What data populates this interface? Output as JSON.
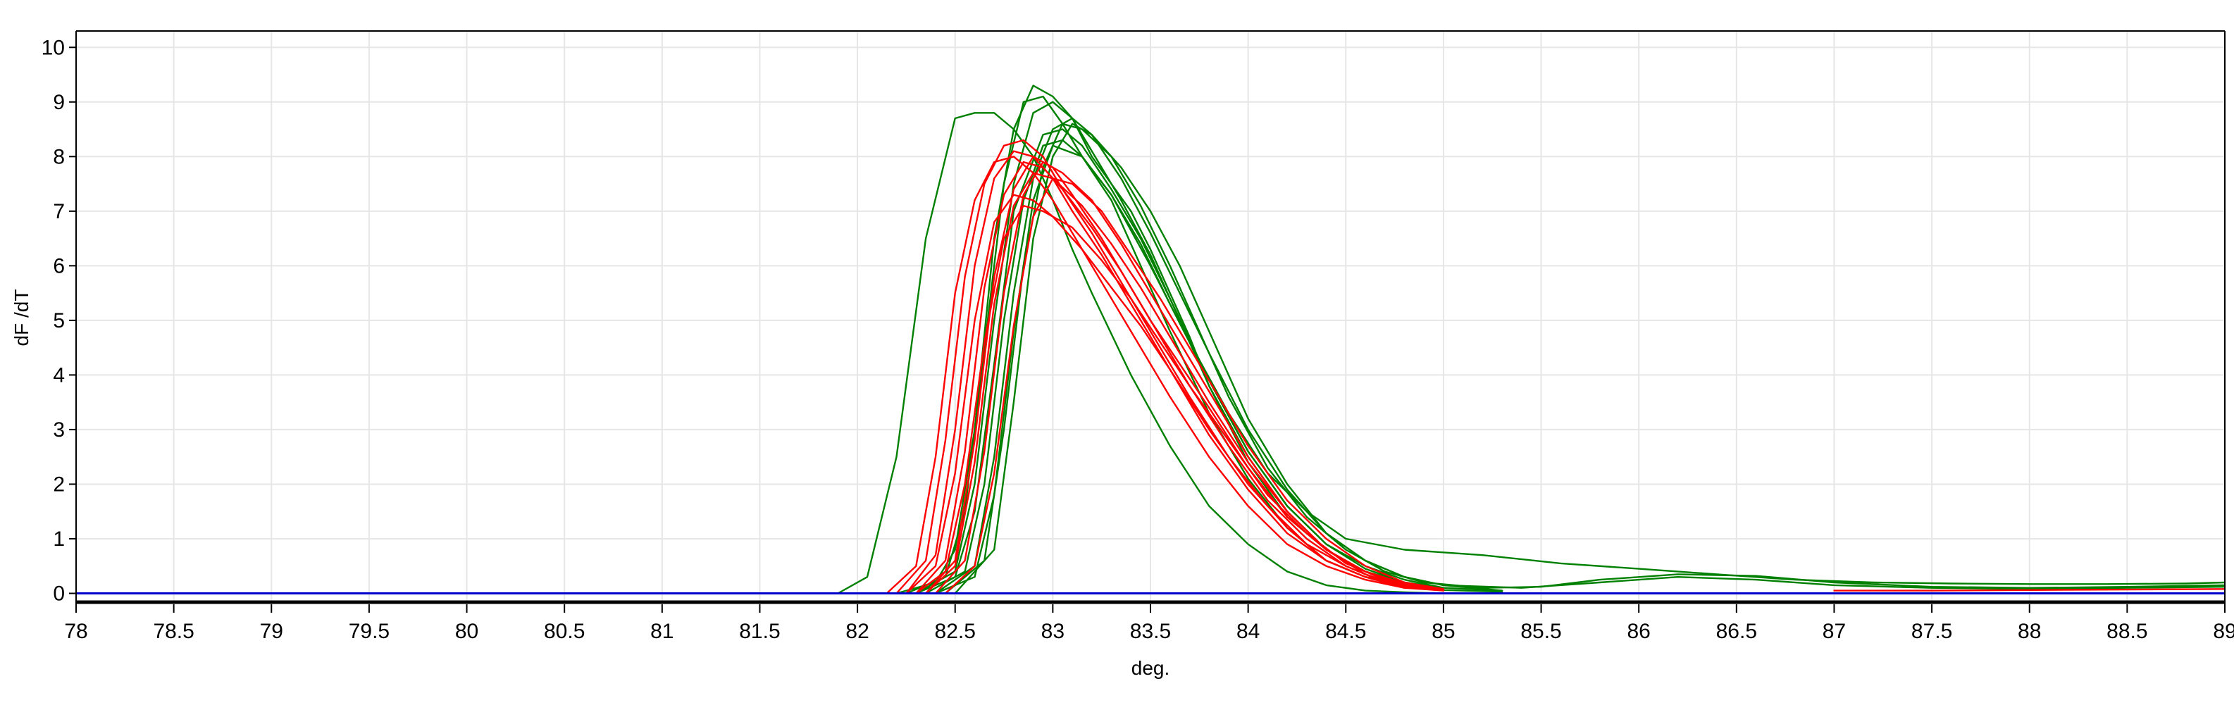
{
  "chart_data": {
    "type": "line",
    "title": "",
    "xlabel": "deg.",
    "ylabel": "dF /dT",
    "xlim": [
      78,
      89
    ],
    "ylim": [
      -0.2,
      10.3
    ],
    "grid": true,
    "legend": "none",
    "x_ticks": [
      "78",
      "78.5",
      "79",
      "79.5",
      "80",
      "80.5",
      "81",
      "81.5",
      "82",
      "82.5",
      "83",
      "83.5",
      "84",
      "84.5",
      "85",
      "85.5",
      "86",
      "86.5",
      "87",
      "87.5",
      "88",
      "88.5",
      "89"
    ],
    "y_ticks": [
      "0",
      "1",
      "2",
      "3",
      "4",
      "5",
      "6",
      "7",
      "8",
      "9",
      "10"
    ],
    "colors": {
      "red_group": "#ff0000",
      "green_group": "#008000",
      "baseline": "#0000cc",
      "grid": "#e6e6e6",
      "axis": "#000000",
      "bottom_rule": "#000000"
    },
    "series": [
      {
        "color": "#008000",
        "x": [
          81.9,
          82.05,
          82.2,
          82.35,
          82.5,
          82.6,
          82.7,
          82.8,
          82.9,
          83.0,
          83.1,
          83.2,
          83.4,
          83.6,
          83.8,
          84.0,
          84.2,
          84.4,
          84.6,
          84.8,
          85.0
        ],
        "y": [
          0,
          0.3,
          2.5,
          6.5,
          8.7,
          8.8,
          8.8,
          8.5,
          8.0,
          7.2,
          6.3,
          5.5,
          4.0,
          2.7,
          1.6,
          0.9,
          0.4,
          0.15,
          0.05,
          0.02,
          0
        ]
      },
      {
        "color": "#008000",
        "x": [
          82.2,
          82.4,
          82.5,
          82.6,
          82.7,
          82.8,
          82.9,
          83.0,
          83.1,
          83.2,
          83.3,
          83.4,
          83.5,
          83.6,
          83.7,
          83.8,
          84.0,
          84.2,
          84.4,
          84.6,
          84.8,
          85.0,
          85.3
        ],
        "y": [
          0,
          0.2,
          0.8,
          3.0,
          6.5,
          8.5,
          9.3,
          9.1,
          8.7,
          8.0,
          7.5,
          7.0,
          6.3,
          5.5,
          4.7,
          3.8,
          2.4,
          1.4,
          0.8,
          0.4,
          0.2,
          0.1,
          0.05
        ]
      },
      {
        "color": "#008000",
        "x": [
          82.25,
          82.45,
          82.55,
          82.65,
          82.75,
          82.85,
          82.95,
          83.05,
          83.15,
          83.3,
          83.45,
          83.6,
          83.8,
          84.0,
          84.2,
          84.4,
          84.6,
          84.8,
          85.0,
          85.3
        ],
        "y": [
          0,
          0.3,
          1.5,
          4.5,
          7.5,
          9.0,
          9.1,
          8.6,
          8.0,
          7.2,
          6.0,
          4.8,
          3.3,
          2.1,
          1.2,
          0.6,
          0.3,
          0.15,
          0.06,
          0.03
        ]
      },
      {
        "color": "#008000",
        "x": [
          82.3,
          82.5,
          82.6,
          82.7,
          82.8,
          82.9,
          83.0,
          83.1,
          83.2,
          83.35,
          83.5,
          83.65,
          83.8,
          84.0,
          84.2,
          84.4,
          84.6,
          84.8,
          85.0
        ],
        "y": [
          0,
          0.4,
          2.0,
          5.0,
          7.5,
          8.8,
          9.0,
          8.7,
          8.1,
          7.2,
          6.2,
          5.0,
          3.8,
          2.5,
          1.5,
          0.8,
          0.4,
          0.2,
          0.1
        ]
      },
      {
        "color": "#008000",
        "x": [
          82.3,
          82.5,
          82.6,
          82.7,
          82.8,
          82.95,
          83.05,
          83.15,
          83.3,
          83.45,
          83.6,
          83.8,
          84.0,
          84.2,
          84.4,
          84.6,
          84.8,
          85.0
        ],
        "y": [
          0,
          0.3,
          1.5,
          4.2,
          7.0,
          8.4,
          8.5,
          8.2,
          7.4,
          6.5,
          5.4,
          3.9,
          2.6,
          1.6,
          0.9,
          0.45,
          0.2,
          0.08
        ]
      },
      {
        "color": "#008000",
        "x": [
          82.35,
          82.55,
          82.65,
          82.75,
          82.85,
          82.95,
          83.05,
          83.15,
          83.3,
          83.45,
          83.6,
          83.8,
          84.0,
          84.2,
          84.4,
          84.6,
          84.8,
          85.0
        ],
        "y": [
          0,
          0.4,
          2.0,
          5.0,
          7.2,
          8.2,
          8.3,
          8.0,
          7.3,
          6.4,
          5.3,
          3.9,
          2.6,
          1.6,
          0.9,
          0.5,
          0.25,
          0.1
        ]
      },
      {
        "color": "#008000",
        "x": [
          82.4,
          82.6,
          82.7,
          82.8,
          82.9,
          83.0,
          83.1,
          83.2,
          83.35,
          83.5,
          83.65,
          83.8,
          84.0,
          84.2,
          84.4,
          84.6,
          84.8,
          85.0,
          85.3
        ],
        "y": [
          0,
          0.5,
          2.5,
          5.5,
          7.6,
          8.5,
          8.7,
          8.4,
          7.6,
          6.6,
          5.5,
          4.4,
          3.0,
          1.9,
          1.1,
          0.6,
          0.3,
          0.15,
          0.05
        ]
      },
      {
        "color": "#008000",
        "x": [
          82.4,
          82.6,
          82.7,
          82.8,
          82.9,
          83.0,
          83.15,
          83.3,
          83.5,
          83.7,
          83.9,
          84.1,
          84.3,
          84.5,
          84.8,
          85.2,
          85.6,
          86.0,
          86.4,
          86.8,
          87.2,
          87.6,
          88.0,
          88.4,
          88.8,
          89.0
        ],
        "y": [
          0,
          0.3,
          1.8,
          4.8,
          7.2,
          8.2,
          8.0,
          7.3,
          6.0,
          4.6,
          3.3,
          2.2,
          1.5,
          1.0,
          0.8,
          0.7,
          0.55,
          0.45,
          0.35,
          0.25,
          0.2,
          0.18,
          0.17,
          0.17,
          0.18,
          0.2
        ]
      },
      {
        "color": "#008000",
        "x": [
          82.45,
          82.65,
          82.75,
          82.85,
          82.95,
          83.05,
          83.15,
          83.3,
          83.45,
          83.6,
          83.75,
          83.9,
          84.1,
          84.3,
          84.5,
          84.7,
          84.9,
          85.2,
          85.5,
          85.8,
          86.2,
          86.6,
          87.0,
          87.5,
          88.0,
          88.5,
          89.0
        ],
        "y": [
          0,
          0.6,
          3.0,
          6.0,
          7.8,
          8.6,
          8.5,
          8.0,
          7.1,
          6.0,
          4.8,
          3.6,
          2.3,
          1.4,
          0.8,
          0.4,
          0.2,
          0.1,
          0.12,
          0.25,
          0.35,
          0.32,
          0.2,
          0.12,
          0.1,
          0.12,
          0.15
        ]
      },
      {
        "color": "#008000",
        "x": [
          82.5,
          82.7,
          82.8,
          82.9,
          83.0,
          83.1,
          83.2,
          83.35,
          83.5,
          83.65,
          83.8,
          84.0,
          84.2,
          84.4,
          84.6,
          84.8,
          85.0,
          85.4,
          85.8,
          86.2,
          86.6,
          87.0,
          87.5,
          88.0,
          88.5,
          89.0
        ],
        "y": [
          0,
          0.8,
          3.5,
          6.5,
          8.0,
          8.6,
          8.4,
          7.8,
          7.0,
          6.0,
          4.8,
          3.2,
          2.0,
          1.1,
          0.6,
          0.3,
          0.15,
          0.1,
          0.2,
          0.3,
          0.25,
          0.15,
          0.1,
          0.08,
          0.1,
          0.12
        ]
      },
      {
        "color": "#ff0000",
        "x": [
          82.15,
          82.3,
          82.4,
          82.5,
          82.6,
          82.7,
          82.8,
          82.9,
          83.0,
          83.1,
          83.25,
          83.4,
          83.6,
          83.8,
          84.0,
          84.2,
          84.4,
          84.6,
          84.8,
          85.0
        ],
        "y": [
          0,
          0.5,
          2.5,
          5.5,
          7.2,
          7.9,
          8.0,
          7.7,
          7.2,
          6.6,
          5.7,
          4.8,
          3.6,
          2.5,
          1.6,
          0.9,
          0.5,
          0.25,
          0.1,
          0.05
        ]
      },
      {
        "color": "#ff0000",
        "x": [
          82.2,
          82.35,
          82.45,
          82.55,
          82.65,
          82.75,
          82.85,
          82.95,
          83.05,
          83.2,
          83.35,
          83.5,
          83.7,
          83.9,
          84.1,
          84.3,
          84.5,
          84.7,
          84.9
        ],
        "y": [
          0,
          0.6,
          2.8,
          5.8,
          7.5,
          8.2,
          8.3,
          8.0,
          7.4,
          6.6,
          5.7,
          4.8,
          3.6,
          2.5,
          1.6,
          0.9,
          0.5,
          0.2,
          0.08
        ]
      },
      {
        "color": "#ff0000",
        "x": [
          82.25,
          82.4,
          82.5,
          82.6,
          82.7,
          82.8,
          82.9,
          83.0,
          83.1,
          83.25,
          83.4,
          83.6,
          83.8,
          84.0,
          84.2,
          84.4,
          84.6,
          84.8,
          85.0
        ],
        "y": [
          0,
          0.7,
          3.0,
          6.0,
          7.6,
          8.1,
          8.0,
          7.6,
          7.0,
          6.2,
          5.3,
          4.1,
          2.9,
          1.9,
          1.1,
          0.6,
          0.3,
          0.12,
          0.05
        ]
      },
      {
        "color": "#ff0000",
        "x": [
          82.25,
          82.4,
          82.5,
          82.6,
          82.7,
          82.8,
          82.9,
          83.0,
          83.15,
          83.3,
          83.45,
          83.6,
          83.8,
          84.0,
          84.2,
          84.4,
          84.6,
          84.8
        ],
        "y": [
          0,
          0.5,
          2.2,
          5.0,
          6.8,
          7.3,
          7.2,
          6.9,
          6.3,
          5.6,
          4.9,
          4.1,
          3.0,
          2.0,
          1.2,
          0.6,
          0.3,
          0.1
        ]
      },
      {
        "color": "#ff0000",
        "x": [
          82.3,
          82.45,
          82.55,
          82.65,
          82.75,
          82.85,
          82.95,
          83.05,
          83.2,
          83.35,
          83.5,
          83.65,
          83.8,
          84.0,
          84.2,
          84.4,
          84.6,
          84.8,
          85.0
        ],
        "y": [
          0,
          0.6,
          2.6,
          5.6,
          7.3,
          7.9,
          7.8,
          7.4,
          6.7,
          5.9,
          5.0,
          4.2,
          3.4,
          2.3,
          1.4,
          0.8,
          0.4,
          0.15,
          0.06
        ]
      },
      {
        "color": "#ff0000",
        "x": [
          82.3,
          82.45,
          82.55,
          82.65,
          82.75,
          82.85,
          82.95,
          83.1,
          83.25,
          83.4,
          83.55,
          83.7,
          83.9,
          84.1,
          84.3,
          84.5,
          84.7,
          84.9
        ],
        "y": [
          0,
          0.4,
          2.0,
          4.6,
          6.5,
          7.1,
          7.0,
          6.7,
          6.1,
          5.4,
          4.6,
          3.8,
          2.8,
          1.8,
          1.1,
          0.55,
          0.25,
          0.1
        ]
      },
      {
        "color": "#ff0000",
        "x": [
          82.35,
          82.5,
          82.6,
          82.7,
          82.8,
          82.9,
          83.0,
          83.1,
          83.25,
          83.4,
          83.55,
          83.7,
          83.9,
          84.1,
          84.3,
          84.5,
          84.7,
          84.9
        ],
        "y": [
          0,
          0.6,
          2.8,
          5.8,
          7.4,
          8.0,
          7.8,
          7.3,
          6.5,
          5.6,
          4.7,
          3.8,
          2.7,
          1.7,
          1.0,
          0.5,
          0.2,
          0.08
        ]
      },
      {
        "color": "#ff0000",
        "x": [
          82.35,
          82.5,
          82.6,
          82.7,
          82.8,
          82.9,
          83.0,
          83.15,
          83.3,
          83.45,
          83.6,
          83.8,
          84.0,
          84.2,
          84.4,
          84.6,
          84.8,
          85.0
        ],
        "y": [
          0,
          0.5,
          2.4,
          5.3,
          7.1,
          7.7,
          7.6,
          7.1,
          6.4,
          5.6,
          4.7,
          3.5,
          2.4,
          1.5,
          0.8,
          0.4,
          0.18,
          0.07
        ]
      },
      {
        "color": "#ff0000",
        "x": [
          82.4,
          82.55,
          82.65,
          82.75,
          82.85,
          82.95,
          83.05,
          83.2,
          83.35,
          83.5,
          83.65,
          83.8,
          84.0,
          84.2,
          84.4,
          84.6,
          84.8
        ],
        "y": [
          0,
          0.6,
          2.6,
          5.5,
          7.3,
          7.9,
          7.7,
          7.2,
          6.4,
          5.5,
          4.6,
          3.7,
          2.5,
          1.5,
          0.8,
          0.35,
          0.12
        ]
      },
      {
        "color": "#ff0000",
        "x": [
          82.45,
          82.6,
          82.7,
          82.8,
          82.9,
          83.0,
          83.1,
          83.25,
          83.4,
          83.55,
          83.7,
          83.85,
          84.0,
          84.2,
          84.4,
          84.6,
          84.8,
          85.0
        ],
        "y": [
          0,
          0.5,
          2.2,
          4.9,
          6.9,
          7.6,
          7.5,
          7.0,
          6.2,
          5.4,
          4.5,
          3.6,
          2.7,
          1.7,
          1.0,
          0.5,
          0.2,
          0.08
        ]
      },
      {
        "color": "#ff0000",
        "x": [
          87.0,
          87.5,
          88.0,
          88.5,
          89.0
        ],
        "y": [
          0.05,
          0.05,
          0.06,
          0.07,
          0.08
        ]
      }
    ],
    "baseline_series": {
      "color": "#0000cc",
      "x": [
        78,
        89
      ],
      "y": [
        0,
        0
      ]
    }
  }
}
